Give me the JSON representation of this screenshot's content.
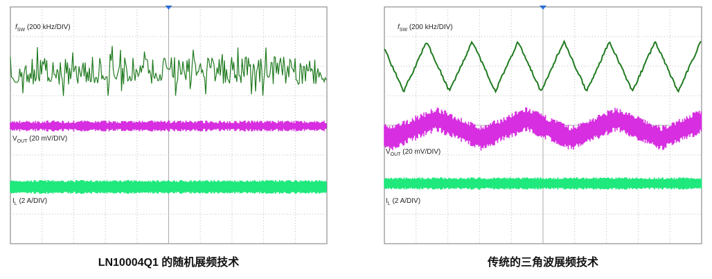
{
  "panels": [
    {
      "traces": [
        {
          "symbol": "f",
          "subscript": "SW",
          "scale": "(200 kHz/DIV)"
        },
        {
          "symbol": "V",
          "subscript": "OUT",
          "scale": "(20 mV/DIV)"
        },
        {
          "symbol": "I",
          "subscript": "L",
          "scale": "(2 A/DIV)"
        }
      ],
      "caption": "LN10004Q1 的随机展频技术"
    },
    {
      "traces": [
        {
          "symbol": "f",
          "subscript": "SW",
          "scale": "(200 kHz/DIV)"
        },
        {
          "symbol": "V",
          "subscript": "OUT",
          "scale": "(20 mV/DIV)"
        },
        {
          "symbol": "I",
          "subscript": "L",
          "scale": "(2 A/DIV)"
        }
      ],
      "caption": "传统的三角波展频技术"
    }
  ]
}
